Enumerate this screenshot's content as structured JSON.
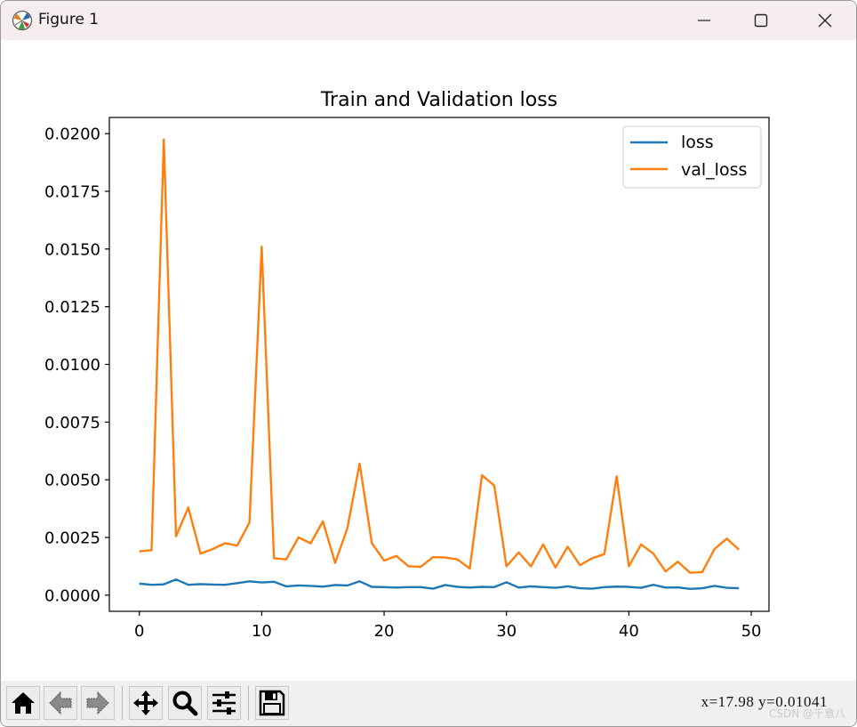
{
  "window": {
    "title": "Figure 1"
  },
  "toolbar": {
    "buttons": [
      {
        "name": "home-icon"
      },
      {
        "name": "back-icon"
      },
      {
        "name": "forward-icon"
      },
      {
        "name": "pan-icon"
      },
      {
        "name": "zoom-icon"
      },
      {
        "name": "configure-subplots-icon"
      },
      {
        "name": "save-icon"
      }
    ],
    "coords": "x=17.98  y=0.01041",
    "watermark": "CSDN @千意八"
  },
  "chart_data": {
    "type": "line",
    "title": "Train and Validation loss",
    "xlabel": "",
    "ylabel": "",
    "xlim": [
      -2.45,
      51.45
    ],
    "ylim": [
      -0.0007,
      0.0207
    ],
    "xticks": [
      0,
      10,
      20,
      30,
      40,
      50
    ],
    "yticks": [
      0.0,
      0.0025,
      0.005,
      0.0075,
      0.01,
      0.0125,
      0.015,
      0.0175,
      0.02
    ],
    "ytick_labels": [
      "0.0000",
      "0.0025",
      "0.0050",
      "0.0075",
      "0.0100",
      "0.0125",
      "0.0150",
      "0.0175",
      "0.0200"
    ],
    "grid": false,
    "legend": "top-right",
    "x": [
      0,
      1,
      2,
      3,
      4,
      5,
      6,
      7,
      8,
      9,
      10,
      11,
      12,
      13,
      14,
      15,
      16,
      17,
      18,
      19,
      20,
      21,
      22,
      23,
      24,
      25,
      26,
      27,
      28,
      29,
      30,
      31,
      32,
      33,
      34,
      35,
      36,
      37,
      38,
      39,
      40,
      41,
      42,
      43,
      44,
      45,
      46,
      47,
      48,
      49
    ],
    "series": [
      {
        "name": "loss",
        "color": "#1f77b4",
        "values": [
          0.0005,
          0.00045,
          0.00047,
          0.00068,
          0.00045,
          0.00048,
          0.00046,
          0.00045,
          0.00052,
          0.0006,
          0.00055,
          0.00058,
          0.00038,
          0.00042,
          0.0004,
          0.00037,
          0.00044,
          0.00042,
          0.0006,
          0.00036,
          0.00035,
          0.00033,
          0.00035,
          0.00035,
          0.00028,
          0.00044,
          0.00036,
          0.00033,
          0.00036,
          0.00035,
          0.00056,
          0.00033,
          0.00038,
          0.00035,
          0.00032,
          0.00038,
          0.0003,
          0.00028,
          0.00035,
          0.00037,
          0.00036,
          0.00032,
          0.00045,
          0.00033,
          0.00034,
          0.00027,
          0.0003,
          0.0004,
          0.00032,
          0.0003
        ]
      },
      {
        "name": "val_loss",
        "color": "#ff7f0e",
        "values": [
          0.0019,
          0.00195,
          0.01975,
          0.00255,
          0.0038,
          0.0018,
          0.002,
          0.00225,
          0.00215,
          0.00315,
          0.0151,
          0.0016,
          0.00155,
          0.0025,
          0.00225,
          0.0032,
          0.0014,
          0.0029,
          0.0057,
          0.00225,
          0.0015,
          0.0017,
          0.00125,
          0.00123,
          0.00165,
          0.00163,
          0.00155,
          0.00115,
          0.0052,
          0.00475,
          0.00125,
          0.00185,
          0.00125,
          0.0022,
          0.0012,
          0.0021,
          0.0013,
          0.0016,
          0.00178,
          0.00515,
          0.00125,
          0.0022,
          0.0018,
          0.00103,
          0.00145,
          0.00097,
          0.001,
          0.002,
          0.00245,
          0.00197
        ]
      }
    ]
  }
}
